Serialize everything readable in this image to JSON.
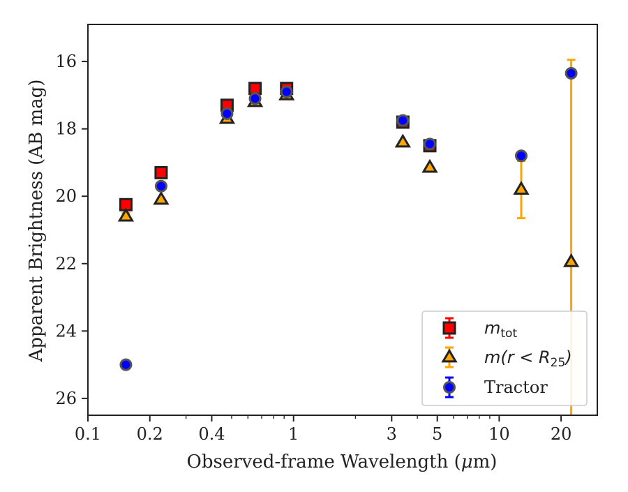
{
  "chart_data": {
    "type": "scatter",
    "xscale": "log",
    "yinverted": true,
    "xlim": [
      0.1,
      30
    ],
    "ylim": [
      26.5,
      14.9
    ],
    "xlabel_prefix": "Observed-frame Wavelength (",
    "xlabel_unit_mu": "μ",
    "xlabel_unit_rest": "m)",
    "ylabel": "Apparent Brightness (AB mag)",
    "x_ticks": [
      {
        "value": 0.1,
        "label": "0.1"
      },
      {
        "value": 0.2,
        "label": "0.2"
      },
      {
        "value": 0.4,
        "label": "0.4"
      },
      {
        "value": 1,
        "label": "1"
      },
      {
        "value": 3,
        "label": "3"
      },
      {
        "value": 5,
        "label": "5"
      },
      {
        "value": 10,
        "label": "10"
      },
      {
        "value": 20,
        "label": "20"
      }
    ],
    "y_ticks": [
      {
        "value": 16,
        "label": "16"
      },
      {
        "value": 18,
        "label": "18"
      },
      {
        "value": 20,
        "label": "20"
      },
      {
        "value": 22,
        "label": "22"
      },
      {
        "value": 24,
        "label": "24"
      },
      {
        "value": 26,
        "label": "26"
      }
    ],
    "legend_position": "lower-right",
    "series": [
      {
        "key": "mtot",
        "marker": "square",
        "color": "#ff0000",
        "edgecolor": "#222222",
        "errcolor": "#ff0000",
        "legend_main": "m",
        "legend_sub": "tot",
        "legend_rest": "",
        "points": [
          {
            "x": 0.153,
            "y": 20.25
          },
          {
            "x": 0.227,
            "y": 19.3
          },
          {
            "x": 0.475,
            "y": 17.3
          },
          {
            "x": 0.65,
            "y": 16.8
          },
          {
            "x": 0.925,
            "y": 16.8
          },
          {
            "x": 3.4,
            "y": 17.8
          },
          {
            "x": 4.6,
            "y": 18.5
          }
        ]
      },
      {
        "key": "mr25",
        "marker": "triangle",
        "color": "#ffa500",
        "edgecolor": "#222222",
        "errcolor": "#ffa500",
        "legend_main": "m",
        "legend_sub": "25",
        "legend_rest_pre": "(r < R",
        "legend_rest_post": ")",
        "points": [
          {
            "x": 0.153,
            "y": 20.6,
            "yerr": 0.1
          },
          {
            "x": 0.227,
            "y": 20.1
          },
          {
            "x": 0.475,
            "y": 17.7
          },
          {
            "x": 0.65,
            "y": 17.2
          },
          {
            "x": 0.925,
            "y": 17.0
          },
          {
            "x": 3.4,
            "y": 18.4
          },
          {
            "x": 4.6,
            "y": 19.15
          },
          {
            "x": 12.8,
            "y": 19.8,
            "yerr": 0.85
          },
          {
            "x": 22.4,
            "y": 21.95,
            "yerr": 6.0
          }
        ]
      },
      {
        "key": "tractor",
        "marker": "circle",
        "color": "#0000ff",
        "edgecolor": "#555555",
        "errcolor": "#0000ff",
        "legend_main": "Tractor",
        "points": [
          {
            "x": 0.153,
            "y": 25.0
          },
          {
            "x": 0.227,
            "y": 19.7
          },
          {
            "x": 0.475,
            "y": 17.55
          },
          {
            "x": 0.65,
            "y": 17.1
          },
          {
            "x": 0.925,
            "y": 16.9
          },
          {
            "x": 3.4,
            "y": 17.75
          },
          {
            "x": 4.6,
            "y": 18.45
          },
          {
            "x": 12.8,
            "y": 18.8
          },
          {
            "x": 22.4,
            "y": 16.35
          }
        ]
      }
    ]
  }
}
